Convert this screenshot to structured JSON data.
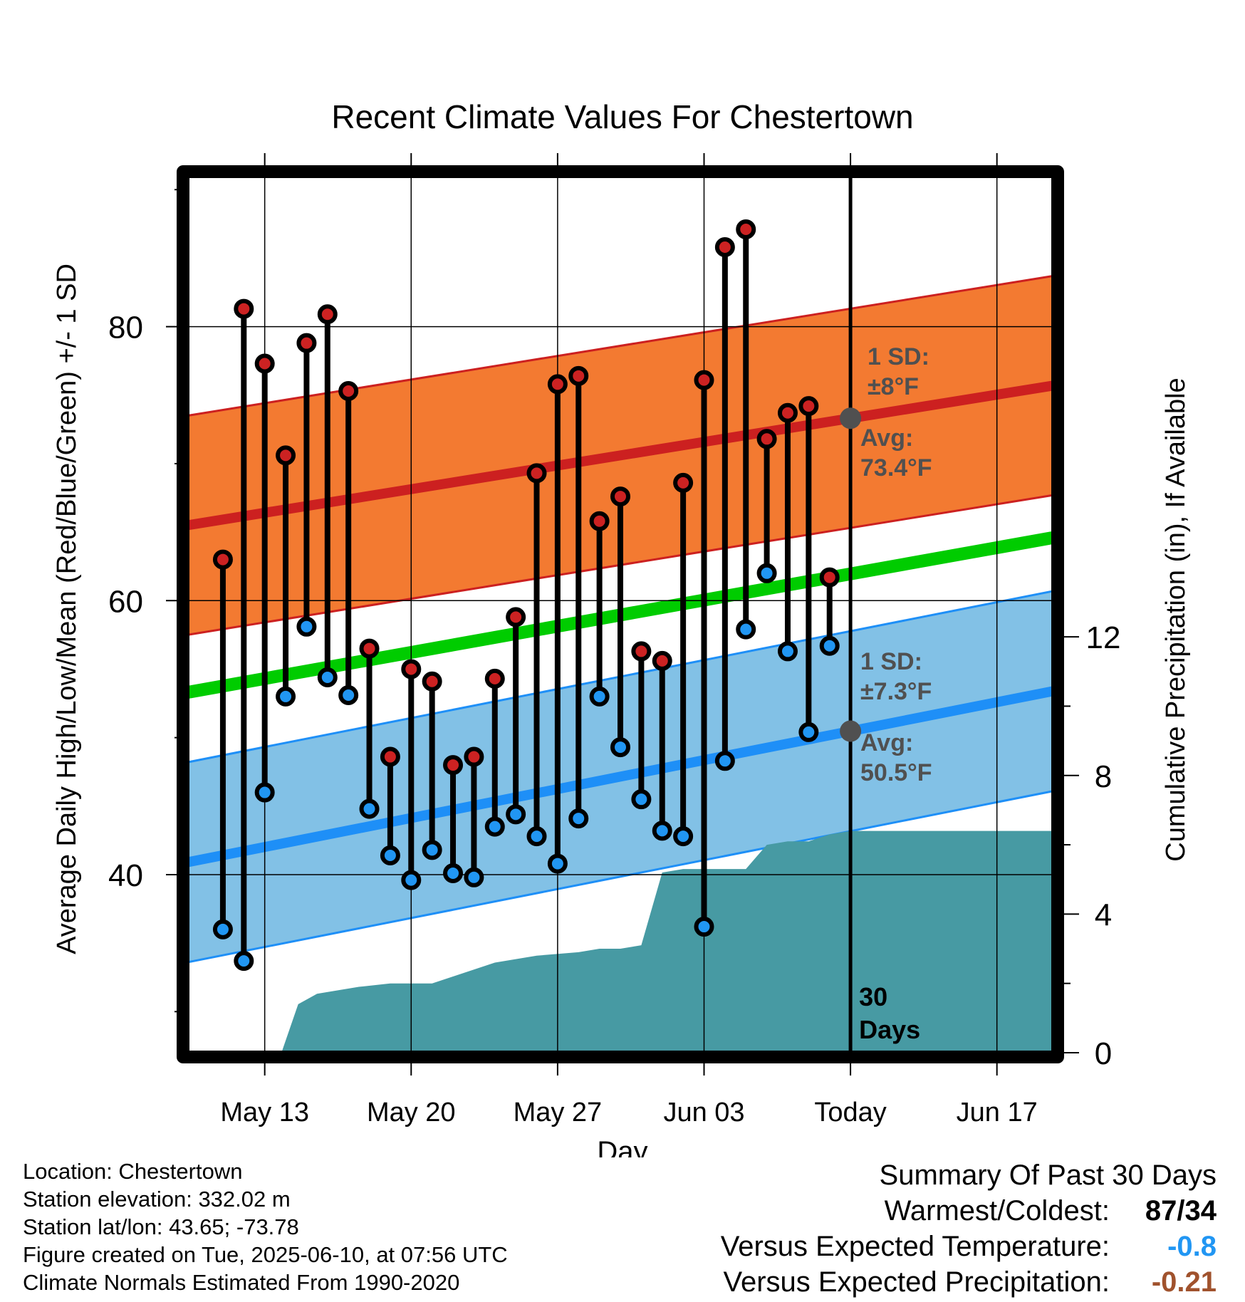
{
  "chart_data": {
    "type": "line",
    "title": "Recent Climate Values For Chestertown",
    "xlabel": "Day",
    "ylabel": "Average Daily High/Low/Mean (Red/Blue/Green) +/- 1 SD",
    "y2label": "Cumulative Precipitation (in), If Available",
    "x_tick_labels": [
      "May 13",
      "May 20",
      "May 27",
      "Jun 03",
      "Today",
      "Jun 17"
    ],
    "y_ticks": [
      40,
      60,
      80
    ],
    "y2_ticks": [
      0,
      4,
      8,
      12
    ],
    "ylim": [
      27,
      91
    ],
    "y2lim": [
      0,
      25.3
    ],
    "xlim_day_offset": [
      -31.7,
      9.7
    ],
    "grid": true,
    "today_label": "30\nDays",
    "days_offset_from_today": [
      -30,
      -29,
      -28,
      -27,
      -26,
      -25,
      -24,
      -23,
      -22,
      -21,
      -20,
      -19,
      -18,
      -17,
      -16,
      -15,
      -14,
      -13,
      -12,
      -11,
      -10,
      -9,
      -8,
      -7,
      -6,
      -5,
      -4,
      -3,
      -2,
      -1
    ],
    "daily_high": [
      63.0,
      81.3,
      77.3,
      70.6,
      78.8,
      80.9,
      75.3,
      56.5,
      48.6,
      55.0,
      54.1,
      48.0,
      48.6,
      54.3,
      58.8,
      69.3,
      75.8,
      76.4,
      65.8,
      67.6,
      56.3,
      55.6,
      68.6,
      76.1,
      85.8,
      87.1,
      71.8,
      73.7,
      74.2,
      61.7
    ],
    "daily_low": [
      36.0,
      33.7,
      46.0,
      53.0,
      58.1,
      54.4,
      53.1,
      44.8,
      41.4,
      39.6,
      41.8,
      40.1,
      39.8,
      43.5,
      44.4,
      42.8,
      40.8,
      44.1,
      53.0,
      49.3,
      45.5,
      43.2,
      42.8,
      36.2,
      48.3,
      57.9,
      62.0,
      56.3,
      50.4,
      56.7
    ],
    "normal_high": {
      "start": 65.5,
      "end": 75.7
    },
    "normal_high_sd": 8,
    "normal_low": {
      "start": 40.9,
      "end": 53.4
    },
    "normal_low_sd": 7.3,
    "normal_mean": {
      "start": 53.3,
      "end": 64.6
    },
    "precip_cumulative": {
      "x": [
        -27.2,
        -26.4,
        -25.5,
        -24.5,
        -23.5,
        -22.0,
        -21.0,
        -20.0,
        -19.5,
        -19.0,
        -18.0,
        -17.0,
        -16.0,
        -15.0,
        -13.0,
        -12.0,
        -11.0,
        -10.0,
        -9.0,
        -8.0,
        -7.0,
        -6.0,
        -5.0,
        -4.0,
        -3.0,
        -2.0,
        -1.0,
        0.0,
        9.7
      ],
      "y": [
        0.0,
        1.4,
        1.7,
        1.8,
        1.9,
        2.0,
        2.0,
        2.0,
        2.1,
        2.2,
        2.4,
        2.6,
        2.7,
        2.8,
        2.9,
        3.0,
        3.0,
        3.1,
        5.2,
        5.3,
        5.3,
        5.3,
        5.3,
        6.0,
        6.1,
        6.1,
        6.3,
        6.4,
        6.4
      ]
    },
    "annotations": {
      "high_sd": "1 SD:\n±8°F",
      "high_avg": "Avg:\n73.4°F",
      "low_sd": "1 SD:\n±7.3°F",
      "low_avg": "Avg:\n50.5°F"
    },
    "colors": {
      "high_band": "#f37a31",
      "high_line": "#cc2020",
      "low_band": "#82c1e6",
      "low_line": "#1e8ff7",
      "mean_line": "#00cc00",
      "precip": "#479aa3",
      "high_dot": "#cc2222",
      "low_dot": "#2196f3",
      "annotation": "#505050"
    }
  },
  "footer": {
    "location": "Location: Chestertown",
    "elevation": "Station elevation: 332.02 m",
    "latlon": "Station lat/lon: 43.65; -73.78",
    "created": "Figure created on Tue, 2025-06-10, at 07:56 UTC",
    "normals": "Climate Normals Estimated From 1990-2020"
  },
  "summary": {
    "heading": "Summary Of Past 30 Days",
    "warmest_label": "Warmest/Coldest:",
    "warmest_value": "87/34",
    "temp_label": "Versus Expected Temperature:",
    "temp_value": "-0.8",
    "temp_color": "#2196f3",
    "precip_label": "Versus Expected Precipitation:",
    "precip_value": "-0.21",
    "precip_color": "#a0522d"
  }
}
